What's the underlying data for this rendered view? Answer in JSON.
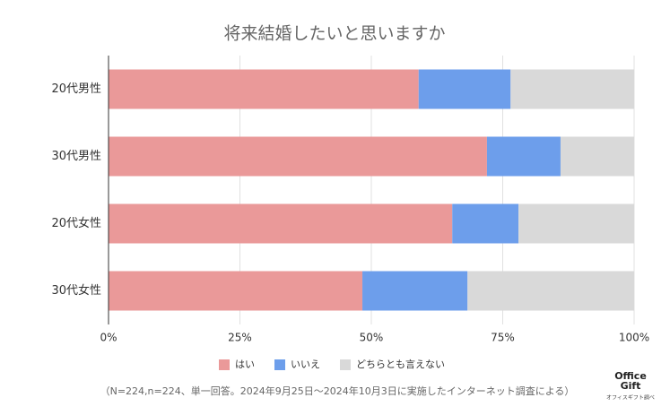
{
  "chart_data": {
    "type": "stacked-bar-horizontal",
    "title": "将来結婚したいと思いますか",
    "categories": [
      "20代男性",
      "30代男性",
      "20代女性",
      "30代女性"
    ],
    "series": [
      {
        "name": "はい",
        "color": "#ea9999",
        "values": [
          59,
          72,
          65.4,
          48.3
        ]
      },
      {
        "name": "いいえ",
        "color": "#6d9eeb",
        "values": [
          17.5,
          14,
          12.6,
          20
        ]
      },
      {
        "name": "どちらとも言えない",
        "color": "#d9d9d9",
        "values": [
          23.5,
          14,
          22,
          31.7
        ]
      }
    ],
    "xlim": [
      0,
      100
    ],
    "xticks": [
      {
        "value": 0,
        "label": "0%"
      },
      {
        "value": 25,
        "label": "25%"
      },
      {
        "value": 50,
        "label": "50%"
      },
      {
        "value": 75,
        "label": "75%"
      },
      {
        "value": 100,
        "label": "100%"
      }
    ],
    "grid": true,
    "legend": "bottom",
    "note": "（N=224,n=224、単一回答。2024年9月25日～2024年10月3日に実施したインターネット調査による）",
    "logo": {
      "line1": "Office",
      "line2": "Gift",
      "caption": "オフィスギフト調べ"
    }
  }
}
